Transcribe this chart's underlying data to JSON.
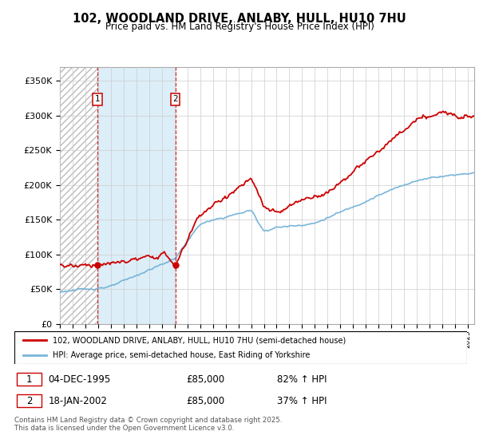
{
  "title": "102, WOODLAND DRIVE, ANLABY, HULL, HU10 7HU",
  "subtitle": "Price paid vs. HM Land Registry's House Price Index (HPI)",
  "ylim": [
    0,
    370000
  ],
  "yticks": [
    0,
    50000,
    100000,
    150000,
    200000,
    250000,
    300000,
    350000
  ],
  "ytick_labels": [
    "£0",
    "£50K",
    "£100K",
    "£150K",
    "£200K",
    "£250K",
    "£300K",
    "£350K"
  ],
  "hpi_color": "#6baed6",
  "price_color": "#cc0000",
  "purchase1_date": 1995.92,
  "purchase1_price": 85000,
  "purchase2_date": 2002.05,
  "purchase2_price": 85000,
  "legend1": "102, WOODLAND DRIVE, ANLABY, HULL, HU10 7HU (semi-detached house)",
  "legend2": "HPI: Average price, semi-detached house, East Riding of Yorkshire",
  "annotation1_label": "1",
  "annotation1_date": "04-DEC-1995",
  "annotation1_price": "£85,000",
  "annotation1_hpi": "82% ↑ HPI",
  "annotation2_label": "2",
  "annotation2_date": "18-JAN-2002",
  "annotation2_price": "£85,000",
  "annotation2_hpi": "37% ↑ HPI",
  "footer": "Contains HM Land Registry data © Crown copyright and database right 2025.\nThis data is licensed under the Open Government Licence v3.0.",
  "grid_color": "#cccccc",
  "hatch_bg_color": "#dce8f5",
  "xlim_start": 1993,
  "xlim_end": 2025.5
}
